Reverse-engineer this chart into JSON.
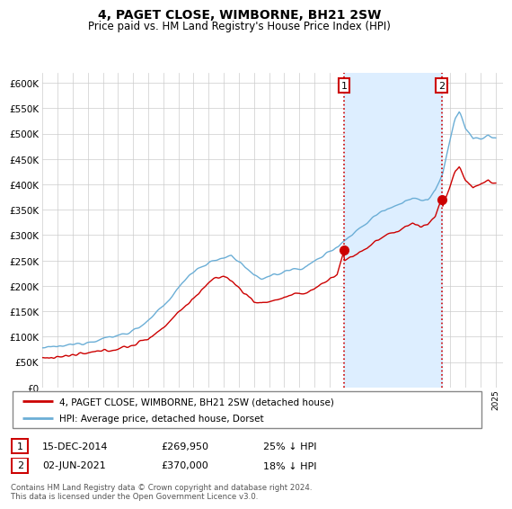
{
  "title": "4, PAGET CLOSE, WIMBORNE, BH21 2SW",
  "subtitle": "Price paid vs. HM Land Registry's House Price Index (HPI)",
  "legend_line1": "4, PAGET CLOSE, WIMBORNE, BH21 2SW (detached house)",
  "legend_line2": "HPI: Average price, detached house, Dorset",
  "transaction1_date": "15-DEC-2014",
  "transaction1_price": "£269,950",
  "transaction1_hpi": "25% ↓ HPI",
  "transaction2_date": "02-JUN-2021",
  "transaction2_price": "£370,000",
  "transaction2_hpi": "18% ↓ HPI",
  "footnote": "Contains HM Land Registry data © Crown copyright and database right 2024.\nThis data is licensed under the Open Government Licence v3.0.",
  "hpi_color": "#6baed6",
  "price_color": "#cc0000",
  "vline_color": "#cc0000",
  "shade_color": "#ddeeff",
  "ylim": [
    0,
    620000
  ],
  "yticks": [
    0,
    50000,
    100000,
    150000,
    200000,
    250000,
    300000,
    350000,
    400000,
    450000,
    500000,
    550000,
    600000
  ],
  "year_start": 1995,
  "year_end": 2025,
  "transaction1_year": 2014.958,
  "transaction2_year": 2021.417,
  "background_color": "#ffffff",
  "plot_bg_color": "#ffffff"
}
